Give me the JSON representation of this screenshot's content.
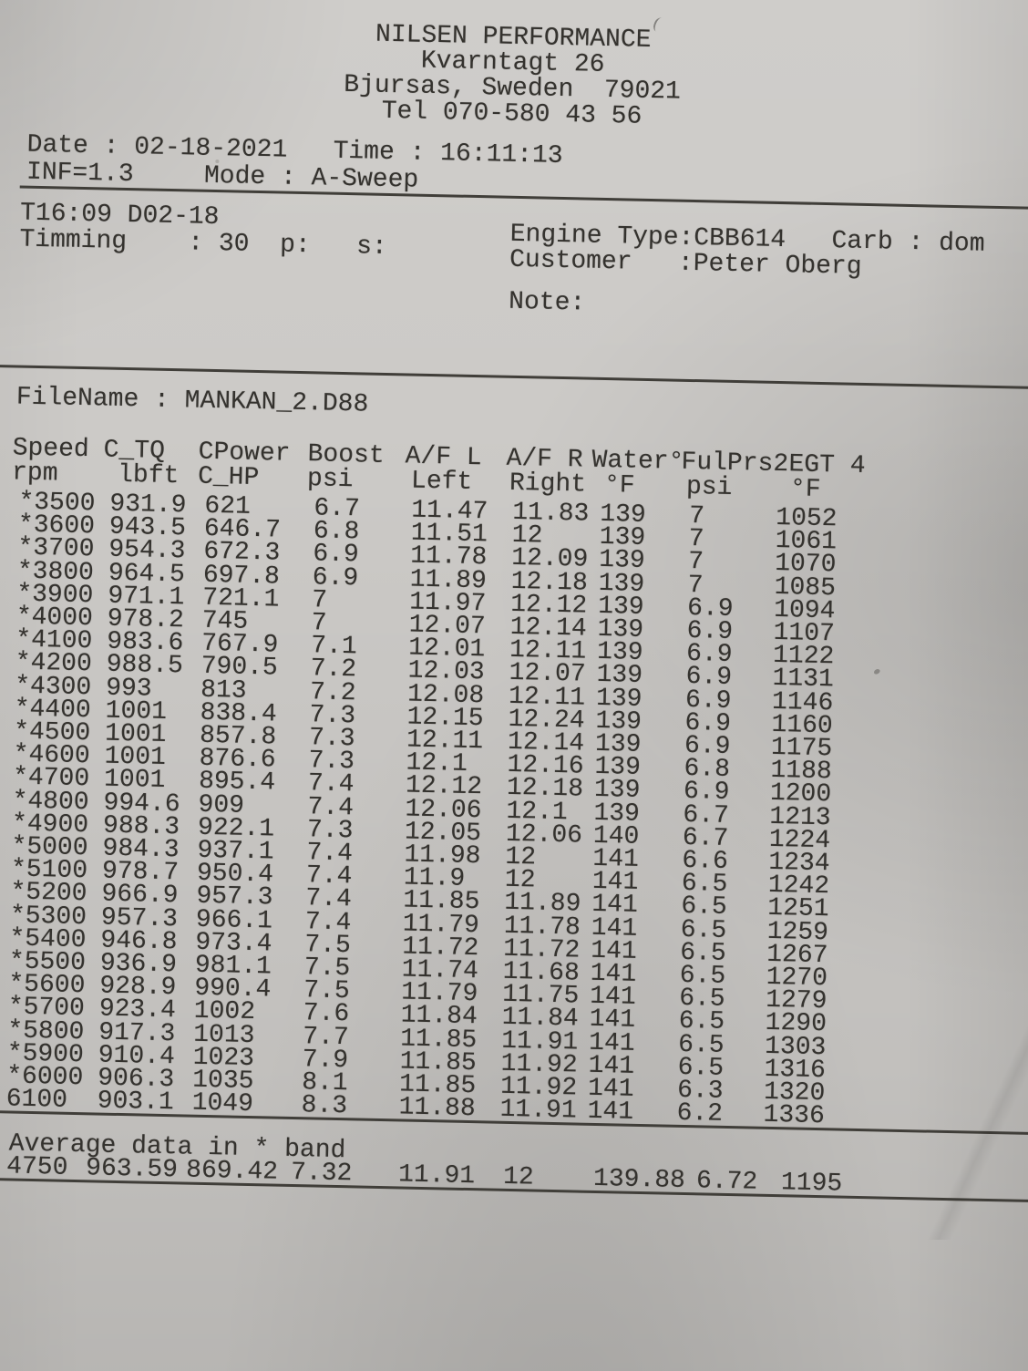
{
  "colors": {
    "paper": "#cccac7",
    "ink": "#34322e",
    "rule": "#403e39"
  },
  "letterhead": {
    "company": "NILSEN PERFORMANCE",
    "address_line1": "Kvarntagt 26",
    "address_line2": "Bjursas, Sweden  79021",
    "phone": "Tel 070-580 43 56"
  },
  "meta": {
    "date": "Date : 02-18-2021",
    "time": "Time : 16:11:13",
    "inf": "INF=1.3",
    "mode": "Mode : A-Sweep",
    "run_stamp": "T16:09 D02-18",
    "timing_line": "Timming    : 30  p:   s:",
    "engine_line": "Engine Type:CBB614   Carb : dom",
    "customer_line": "Customer   :Peter Oberg",
    "note_label": "Note:",
    "filename_line": "FileName : MANKAN_2.D88"
  },
  "table": {
    "header_row1": [
      "Speed",
      "C_TQ",
      "CPower",
      "Boost",
      "A/F L",
      "A/F R",
      "Water°",
      "FulPrs2",
      "EGT 4"
    ],
    "header_row2": [
      "rpm",
      "lbft",
      "C_HP",
      "psi",
      "Left",
      "Right",
      "°F",
      "psi",
      "°F"
    ],
    "columns": [
      "Speed rpm",
      "C_TQ lbft",
      "CPower C_HP",
      "Boost psi",
      "A/F L Left",
      "A/F R Right",
      "Water °F",
      "FulPrs2 psi",
      "EGT 4 °F"
    ],
    "rows": [
      [
        "*3500",
        "931.9",
        "621",
        "6.7",
        "11.47",
        "11.83",
        "139",
        "7",
        "1052"
      ],
      [
        "*3600",
        "943.5",
        "646.7",
        "6.8",
        "11.51",
        "12",
        "139",
        "7",
        "1061"
      ],
      [
        "*3700",
        "954.3",
        "672.3",
        "6.9",
        "11.78",
        "12.09",
        "139",
        "7",
        "1070"
      ],
      [
        "*3800",
        "964.5",
        "697.8",
        "6.9",
        "11.89",
        "12.18",
        "139",
        "7",
        "1085"
      ],
      [
        "*3900",
        "971.1",
        "721.1",
        "7",
        "11.97",
        "12.12",
        "139",
        "6.9",
        "1094"
      ],
      [
        "*4000",
        "978.2",
        "745",
        "7",
        "12.07",
        "12.14",
        "139",
        "6.9",
        "1107"
      ],
      [
        "*4100",
        "983.6",
        "767.9",
        "7.1",
        "12.01",
        "12.11",
        "139",
        "6.9",
        "1122"
      ],
      [
        "*4200",
        "988.5",
        "790.5",
        "7.2",
        "12.03",
        "12.07",
        "139",
        "6.9",
        "1131"
      ],
      [
        "*4300",
        "993",
        "813",
        "7.2",
        "12.08",
        "12.11",
        "139",
        "6.9",
        "1146"
      ],
      [
        "*4400",
        "1001",
        "838.4",
        "7.3",
        "12.15",
        "12.24",
        "139",
        "6.9",
        "1160"
      ],
      [
        "*4500",
        "1001",
        "857.8",
        "7.3",
        "12.11",
        "12.14",
        "139",
        "6.9",
        "1175"
      ],
      [
        "*4600",
        "1001",
        "876.6",
        "7.3",
        "12.1",
        "12.16",
        "139",
        "6.8",
        "1188"
      ],
      [
        "*4700",
        "1001",
        "895.4",
        "7.4",
        "12.12",
        "12.18",
        "139",
        "6.9",
        "1200"
      ],
      [
        "*4800",
        "994.6",
        "909",
        "7.4",
        "12.06",
        "12.1",
        "139",
        "6.7",
        "1213"
      ],
      [
        "*4900",
        "988.3",
        "922.1",
        "7.3",
        "12.05",
        "12.06",
        "140",
        "6.7",
        "1224"
      ],
      [
        "*5000",
        "984.3",
        "937.1",
        "7.4",
        "11.98",
        "12",
        "141",
        "6.6",
        "1234"
      ],
      [
        "*5100",
        "978.7",
        "950.4",
        "7.4",
        "11.9",
        "12",
        "141",
        "6.5",
        "1242"
      ],
      [
        "*5200",
        "966.9",
        "957.3",
        "7.4",
        "11.85",
        "11.89",
        "141",
        "6.5",
        "1251"
      ],
      [
        "*5300",
        "957.3",
        "966.1",
        "7.4",
        "11.79",
        "11.78",
        "141",
        "6.5",
        "1259"
      ],
      [
        "*5400",
        "946.8",
        "973.4",
        "7.5",
        "11.72",
        "11.72",
        "141",
        "6.5",
        "1267"
      ],
      [
        "*5500",
        "936.9",
        "981.1",
        "7.5",
        "11.74",
        "11.68",
        "141",
        "6.5",
        "1270"
      ],
      [
        "*5600",
        "928.9",
        "990.4",
        "7.5",
        "11.79",
        "11.75",
        "141",
        "6.5",
        "1279"
      ],
      [
        "*5700",
        "923.4",
        "1002",
        "7.6",
        "11.84",
        "11.84",
        "141",
        "6.5",
        "1290"
      ],
      [
        "*5800",
        "917.3",
        "1013",
        "7.7",
        "11.85",
        "11.91",
        "141",
        "6.5",
        "1303"
      ],
      [
        "*5900",
        "910.4",
        "1023",
        "7.9",
        "11.85",
        "11.92",
        "141",
        "6.5",
        "1316"
      ],
      [
        "*6000",
        "906.3",
        "1035",
        "8.1",
        "11.85",
        "11.92",
        "141",
        "6.3",
        "1320"
      ],
      [
        "6100",
        "903.1",
        "1049",
        "8.3",
        "11.88",
        "11.91",
        "141",
        "6.2",
        "1336"
      ]
    ],
    "average": {
      "label": "Average data in * band",
      "values": [
        "4750",
        "963.59",
        "869.42",
        "7.32",
        "11.91",
        "12",
        "139.88",
        "6.72",
        "1195"
      ]
    }
  }
}
